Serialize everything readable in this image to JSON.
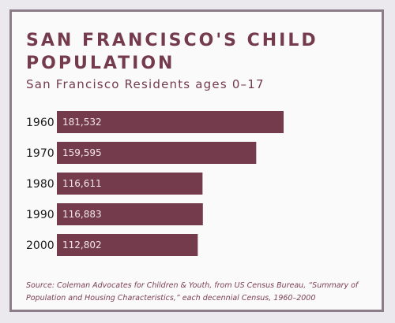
{
  "chart_data": {
    "type": "bar",
    "orientation": "horizontal",
    "title": "SAN FRANCISCO'S CHILD POPULATION",
    "subtitle": "San Francisco Residents ages 0–17",
    "categories": [
      "1960",
      "1970",
      "1980",
      "1990",
      "2000"
    ],
    "values": [
      181532,
      159595,
      116611,
      116883,
      112802
    ],
    "value_labels": [
      "181,532",
      "159,595",
      "116,611",
      "116,883",
      "112,802"
    ],
    "xlim": [
      0,
      181532
    ],
    "grid": false,
    "legend": "none",
    "bar_color": "#743b4d",
    "label_color": "#f2e6ea",
    "source": "Source: Coleman Advocates for Children & Youth, from US Census Bureau, “Summary of Population and Housing Characteristics,” each decennial Census, 1960–2000"
  }
}
